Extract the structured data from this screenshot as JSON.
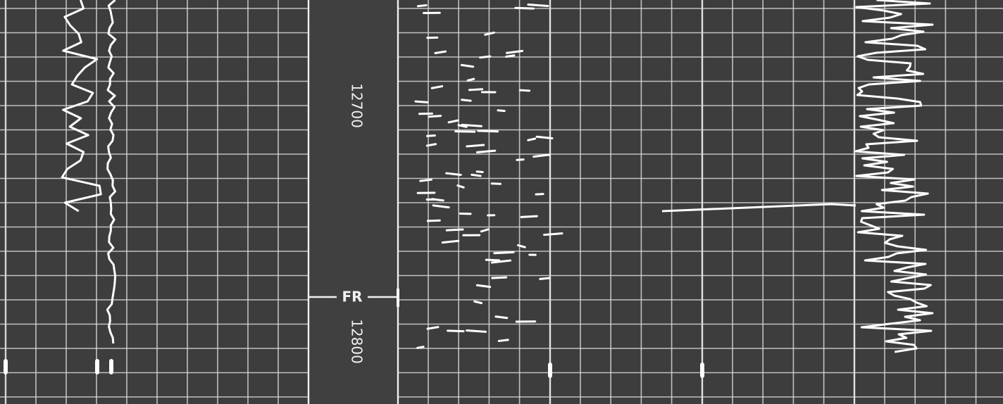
{
  "depth_track": {
    "upper_depth": "12700",
    "marker": "FR",
    "lower_depth": "12800"
  }
}
